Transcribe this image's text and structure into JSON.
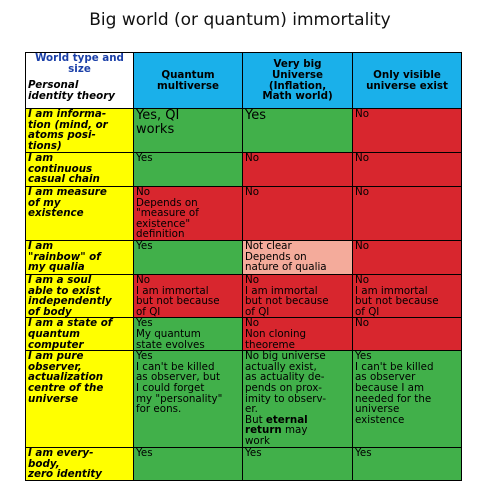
{
  "title": "Big world (or quantum) immortality",
  "table": {
    "header": {
      "corner": {
        "top": [
          "World type and",
          "size"
        ],
        "bottom": [
          "Personal",
          "identity theory"
        ]
      },
      "columns": [
        {
          "lines": [
            "Quantum",
            "multiverse"
          ]
        },
        {
          "lines": [
            "Very big",
            "Universe",
            "(Inflation,",
            "Math world)"
          ]
        },
        {
          "lines": [
            "Only visible",
            "universe exist"
          ]
        }
      ]
    },
    "rows": [
      {
        "label": [
          "I am informa-",
          "tion (mind, or",
          "atoms posi-",
          "tions)"
        ],
        "cells": [
          {
            "color": "#41b04a",
            "large": true,
            "lines": [
              "Yes, QI",
              "works"
            ]
          },
          {
            "color": "#41b04a",
            "large": true,
            "lines": [
              "Yes"
            ]
          },
          {
            "color": "#d8262e",
            "lines": [
              "No"
            ]
          }
        ]
      },
      {
        "label": [
          "I am",
          "continuous",
          "casual chain"
        ],
        "cells": [
          {
            "color": "#41b04a",
            "lines": [
              "Yes"
            ]
          },
          {
            "color": "#d8262e",
            "lines": [
              "No"
            ]
          },
          {
            "color": "#d8262e",
            "lines": [
              "No"
            ]
          }
        ]
      },
      {
        "label": [
          "I am measure",
          "of my",
          "existence"
        ],
        "cells": [
          {
            "color": "#d8262e",
            "lines": [
              "No",
              "Depends on",
              "\"measure of",
              "existence\"",
              "definition"
            ]
          },
          {
            "color": "#d8262e",
            "lines": [
              "No"
            ]
          },
          {
            "color": "#d8262e",
            "lines": [
              "No"
            ]
          }
        ]
      },
      {
        "label": [
          "I am",
          "\"rainbow\" of",
          "my qualia"
        ],
        "cells": [
          {
            "color": "#41b04a",
            "lines": [
              "Yes"
            ]
          },
          {
            "color": "#f4ab9b",
            "lines": [
              "Not clear",
              "Depends on",
              "nature of qualia"
            ]
          },
          {
            "color": "#d8262e",
            "lines": [
              "No"
            ]
          }
        ]
      },
      {
        "label": [
          "I am a soul",
          "able to exist",
          "independently",
          "of body"
        ],
        "cells": [
          {
            "color": "#d8262e",
            "lines": [
              "No",
              "I am immortal",
              "but not because",
              "of QI"
            ]
          },
          {
            "color": "#d8262e",
            "lines": [
              "No",
              "I am immortal",
              "but not because",
              "of QI"
            ]
          },
          {
            "color": "#d8262e",
            "lines": [
              "No",
              "I am immortal",
              "but not because",
              "of QI"
            ]
          }
        ]
      },
      {
        "label": [
          "I am a state of",
          "quantum",
          "computer"
        ],
        "cells": [
          {
            "color": "#41b04a",
            "lines": [
              "Yes",
              "My quantum",
              "state evolves"
            ]
          },
          {
            "color": "#d8262e",
            "lines": [
              "No",
              "Non cloning",
              "theoreme"
            ]
          },
          {
            "color": "#d8262e",
            "lines": [
              "No"
            ]
          }
        ]
      },
      {
        "label": [
          "I am pure",
          "observer,",
          "actualization",
          "centre of the",
          "universe"
        ],
        "cells": [
          {
            "color": "#41b04a",
            "lines": [
              "Yes",
              "I can't be killed",
              "as observer, but",
              "I could forget",
              "my \"personality\"",
              "for eons."
            ]
          },
          {
            "color": "#41b04a",
            "lines": [
              "No big universe",
              "actually exist,",
              "as actuality de-",
              "pends on prox-",
              "imity to observ-",
              "er.",
              [
                {
                  "text": "But "
                },
                {
                  "text": "eternal",
                  "bold": true
                }
              ],
              [
                {
                  "text": "return",
                  "bold": true
                },
                {
                  "text": " may"
                }
              ],
              "work"
            ]
          },
          {
            "color": "#41b04a",
            "lines": [
              "Yes",
              "I can't be killed",
              "as observer",
              "because I am",
              "needed for the",
              "universe",
              "existence"
            ]
          }
        ]
      },
      {
        "label": [
          "I am every-",
          "body,",
          "zero identity"
        ],
        "cells": [
          {
            "color": "#41b04a",
            "lines": [
              "Yes"
            ]
          },
          {
            "color": "#41b04a",
            "lines": [
              "Yes"
            ]
          },
          {
            "color": "#41b04a",
            "lines": [
              "Yes"
            ]
          }
        ]
      }
    ]
  }
}
